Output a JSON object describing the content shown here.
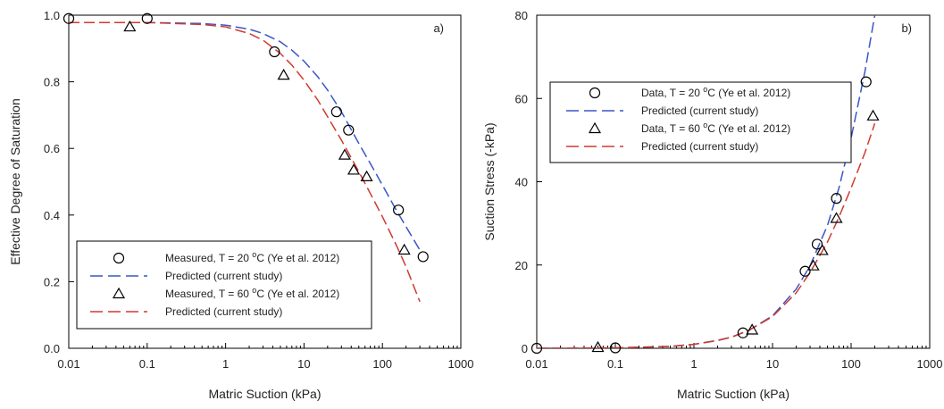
{
  "chart_data": [
    {
      "type": "scatter",
      "panel_label": "a)",
      "xlabel": "Matric Suction (kPa)",
      "ylabel": "Effective Degree of Saturation",
      "xscale": "log",
      "xlim": [
        0.01,
        1000
      ],
      "ylim": [
        0,
        1.0
      ],
      "x_ticks": [
        0.01,
        0.1,
        1,
        10,
        100,
        1000
      ],
      "x_tick_labels": [
        "0.01",
        "0.1",
        "1",
        "10",
        "100",
        "1000"
      ],
      "y_ticks": [
        0,
        0.2,
        0.4,
        0.6,
        0.8,
        1.0
      ],
      "y_tick_labels": [
        "0.0",
        "0.2",
        "0.4",
        "0.6",
        "0.8",
        "1.0"
      ],
      "grid": false,
      "legend_position": "bottom-left",
      "series": [
        {
          "name": "Measured, T = 20 °C  (Ye et al. 2012)",
          "legend_main": "Measured, T = 20 ",
          "legend_sup": "o",
          "legend_tail": "C  (Ye et al. 2012)",
          "kind": "markers",
          "marker": "circle",
          "color": "#000000",
          "x": [
            0.01,
            0.1,
            4.2,
            26,
            37,
            160,
            330
          ],
          "y": [
            0.99,
            0.99,
            0.89,
            0.71,
            0.655,
            0.415,
            0.275
          ]
        },
        {
          "name": "Predicted (current study)",
          "legend_main": "Predicted (current study)",
          "kind": "dashed-line",
          "color": "#3b55c8",
          "x": [
            0.01,
            0.1,
            0.5,
            1,
            2,
            3,
            5,
            7,
            10,
            15,
            20,
            30,
            50,
            70,
            100,
            150,
            200,
            300
          ],
          "y": [
            0.978,
            0.978,
            0.975,
            0.97,
            0.958,
            0.945,
            0.92,
            0.895,
            0.862,
            0.815,
            0.775,
            0.71,
            0.615,
            0.555,
            0.49,
            0.415,
            0.365,
            0.295
          ]
        },
        {
          "name": "Measured, T = 60 °C  (Ye et al. 2012)",
          "legend_main": "Measured, T = 60 ",
          "legend_sup": "o",
          "legend_tail": "C  (Ye et al. 2012)",
          "kind": "markers",
          "marker": "triangle",
          "color": "#000000",
          "x": [
            0.06,
            5.5,
            33,
            43,
            63,
            190
          ],
          "y": [
            0.965,
            0.82,
            0.58,
            0.535,
            0.515,
            0.295
          ]
        },
        {
          "name": "Predicted (current study)",
          "legend_main": "Predicted (current study)",
          "kind": "dashed-line",
          "color": "#d03a2f",
          "x": [
            0.01,
            0.1,
            0.5,
            1,
            2,
            3,
            5,
            7,
            10,
            15,
            20,
            30,
            50,
            70,
            100,
            150,
            200,
            300
          ],
          "y": [
            0.978,
            0.978,
            0.972,
            0.965,
            0.945,
            0.925,
            0.885,
            0.85,
            0.805,
            0.745,
            0.695,
            0.625,
            0.53,
            0.465,
            0.395,
            0.31,
            0.245,
            0.14
          ]
        }
      ]
    },
    {
      "type": "scatter",
      "panel_label": "b)",
      "xlabel": "Matric Suction (kPa)",
      "ylabel": "Suction Stress (-kPa)",
      "xscale": "log",
      "xlim": [
        0.01,
        1000
      ],
      "ylim": [
        0,
        80
      ],
      "x_ticks": [
        0.01,
        0.1,
        1,
        10,
        100,
        1000
      ],
      "x_tick_labels": [
        "0.01",
        "0.1",
        "1",
        "10",
        "100",
        "1000"
      ],
      "y_ticks": [
        0,
        20,
        40,
        60,
        80
      ],
      "y_tick_labels": [
        "0",
        "20",
        "40",
        "60",
        "80"
      ],
      "grid": false,
      "legend_position": "top-left",
      "series": [
        {
          "name": "Data, T = 20 °C  (Ye et al. 2012)",
          "legend_main": "Data, T = 20 ",
          "legend_sup": "o",
          "legend_tail": "C  (Ye et al. 2012)",
          "kind": "markers",
          "marker": "circle",
          "color": "#000000",
          "x": [
            0.01,
            0.1,
            4.2,
            26,
            37,
            65,
            155
          ],
          "y": [
            0,
            0.1,
            3.7,
            18.5,
            25,
            36,
            64
          ]
        },
        {
          "name": "Predicted (current study)",
          "legend_main": "Predicted (current study)",
          "kind": "dashed-line",
          "color": "#3b55c8",
          "x": [
            0.01,
            0.1,
            0.5,
            1,
            2,
            3,
            5,
            10,
            20,
            30,
            50,
            70,
            100,
            150,
            200
          ],
          "y": [
            0,
            0.1,
            0.45,
            0.95,
            1.9,
            2.7,
            4.3,
            7.8,
            14.2,
            19.8,
            29.5,
            38.5,
            50.5,
            66.5,
            80
          ]
        },
        {
          "name": "Data, T = 60 °C  (Ye et al. 2012)",
          "legend_main": "Data, T = 60 ",
          "legend_sup": "o",
          "legend_tail": "C  (Ye et al. 2012)",
          "kind": "markers",
          "marker": "triangle",
          "color": "#000000",
          "x": [
            0.06,
            5.5,
            33,
            43,
            65,
            190
          ],
          "y": [
            0.2,
            4.4,
            19.8,
            23.5,
            31.2,
            55.8
          ]
        },
        {
          "name": "Predicted (current study)",
          "legend_main": "Predicted (current study)",
          "kind": "dashed-line",
          "color": "#d03a2f",
          "x": [
            0.01,
            0.1,
            0.5,
            1,
            2,
            3,
            5,
            10,
            20,
            30,
            50,
            70,
            100,
            150,
            200
          ],
          "y": [
            0,
            0.1,
            0.45,
            0.95,
            1.85,
            2.65,
            4.3,
            7.6,
            13.3,
            18.2,
            25.5,
            31.5,
            38.5,
            47,
            54
          ]
        }
      ]
    }
  ]
}
